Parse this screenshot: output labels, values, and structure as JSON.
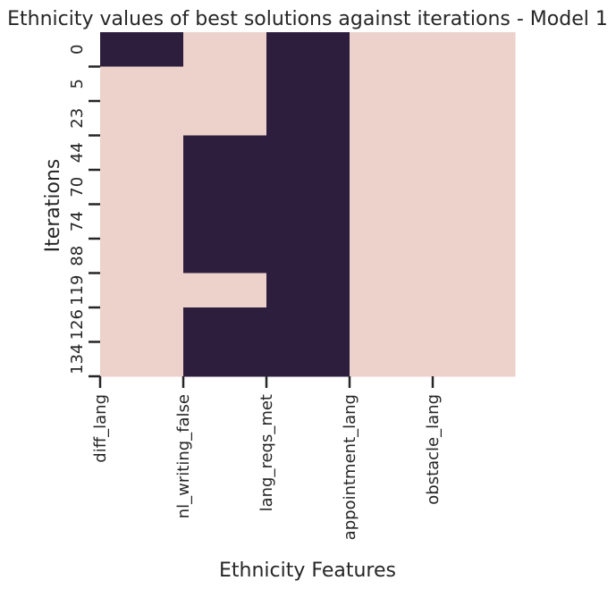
{
  "chart_data": {
    "type": "heatmap",
    "title": "Ethnicity values of best solutions against iterations - Model 1",
    "xlabel": "Ethnicity Features",
    "ylabel": "Iterations",
    "x_tick_labels": [
      "diff_lang",
      "nl_writing_false",
      "lang_reqs_met",
      "appointment_lang",
      "obstacle_lang"
    ],
    "y_tick_labels": [
      "0",
      "5",
      "23",
      "44",
      "70",
      "74",
      "88",
      "119",
      "126",
      "134"
    ],
    "values": [
      [
        1,
        0,
        1,
        0,
        0
      ],
      [
        0,
        0,
        1,
        0,
        0
      ],
      [
        0,
        0,
        1,
        0,
        0
      ],
      [
        0,
        1,
        1,
        0,
        0
      ],
      [
        0,
        1,
        1,
        0,
        0
      ],
      [
        0,
        1,
        1,
        0,
        0
      ],
      [
        0,
        1,
        1,
        0,
        0
      ],
      [
        0,
        0,
        1,
        0,
        0
      ],
      [
        0,
        1,
        1,
        0,
        0
      ],
      [
        0,
        1,
        1,
        0,
        0
      ]
    ],
    "colors": {
      "0": "#edd1cb",
      "1": "#2d1e3e"
    },
    "colorbar": false,
    "grid": false
  }
}
